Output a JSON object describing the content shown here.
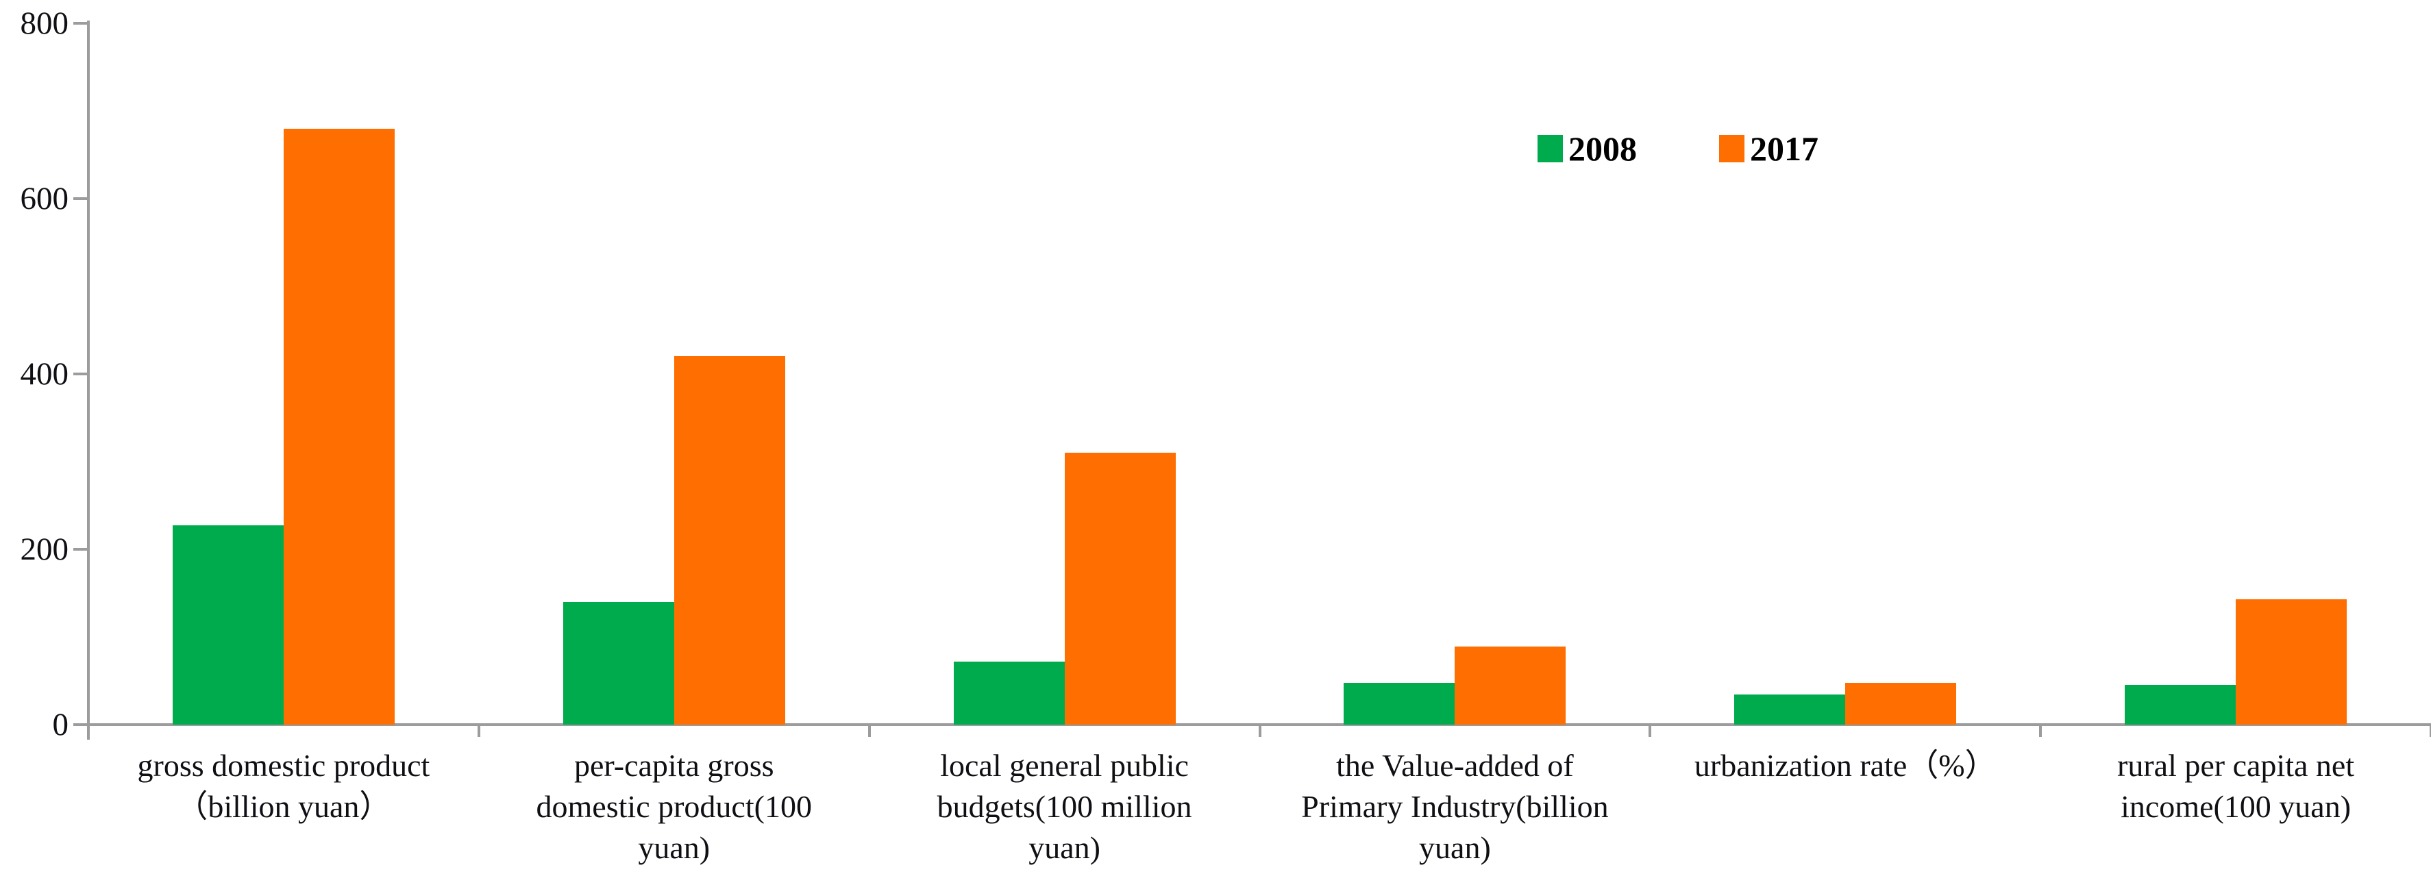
{
  "chart_data": {
    "type": "bar",
    "title": "",
    "xlabel": "",
    "ylabel": "",
    "ylim": [
      0,
      800
    ],
    "yticks": [
      0,
      200,
      400,
      600,
      800
    ],
    "grid": false,
    "legend_position": "top-right-inside",
    "axis_color": "#9c9c9c",
    "text_color": "#0f0f14",
    "categories": [
      "gross domestic product（billion yuan）",
      "per-capita gross domestic product(100 yuan)",
      "local general public budgets(100 million yuan)",
      "the Value-added of Primary Industry(billion yuan)",
      "urbanization rate（%）",
      "rural per capita net income(100 yuan)"
    ],
    "category_label_lines": [
      [
        "gross domestic product",
        "（billion yuan）"
      ],
      [
        "per-capita gross",
        "domestic product(100",
        "yuan)"
      ],
      [
        "local general public",
        "budgets(100 million",
        "yuan)"
      ],
      [
        "the Value-added of",
        "Primary Industry(billion",
        "yuan)"
      ],
      [
        "urbanization rate（%）"
      ],
      [
        "rural per capita net",
        "income(100 yuan)"
      ]
    ],
    "series": [
      {
        "name": "2008",
        "color": "#00AB4E",
        "values": [
          227,
          140,
          72,
          48,
          34,
          45
        ]
      },
      {
        "name": "2017",
        "color": "#FF6E01",
        "values": [
          680,
          420,
          310,
          89,
          48,
          143
        ]
      }
    ]
  },
  "legend": {
    "item_2008": "2008",
    "item_2017": "2017"
  }
}
